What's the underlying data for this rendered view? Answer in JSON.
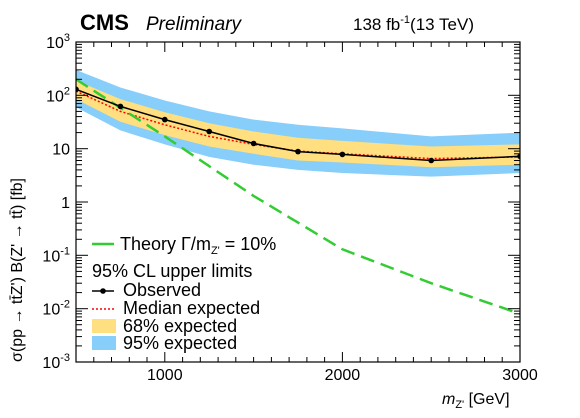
{
  "header": {
    "experiment": "CMS",
    "status": "Preliminary",
    "lumi_value": "138 fb",
    "lumi_exp": "-1",
    "lumi_energy": "(13 TeV)"
  },
  "chart_data": {
    "type": "line",
    "xlabel": "m",
    "xlabel_sub": "Z'",
    "xlabel_unit": " [GeV]",
    "ylabel": "σ(pp → tt̄Z') B(Z' → tt̄) [fb]",
    "xlim": [
      500,
      3000
    ],
    "ylim": [
      0.001,
      1000
    ],
    "yscale": "log",
    "x_ticks": [
      1000,
      2000,
      3000
    ],
    "x_tick_labels": [
      "1000",
      "2000",
      "3000"
    ],
    "y_ticks": [
      0.001,
      0.01,
      0.1,
      1,
      10,
      100,
      1000
    ],
    "y_tick_labels": [
      {
        "base": "10",
        "exp": "-3"
      },
      {
        "base": "10",
        "exp": "-2"
      },
      {
        "base": "10",
        "exp": "-1"
      },
      {
        "base": "1",
        "exp": ""
      },
      {
        "base": "10",
        "exp": ""
      },
      {
        "base": "10",
        "exp": "2"
      },
      {
        "base": "10",
        "exp": "3"
      }
    ],
    "x": [
      500,
      750,
      1000,
      1250,
      1500,
      1750,
      2000,
      2500,
      3000
    ],
    "series": [
      {
        "name": "Observed",
        "color": "#000000",
        "values": [
          130,
          62,
          35,
          21,
          12.5,
          8.8,
          7.8,
          6.0,
          7.2
        ]
      },
      {
        "name": "Median expected",
        "color": "#ff0000",
        "values": [
          120,
          50,
          28,
          17,
          12,
          9,
          8,
          6.5,
          7
        ]
      },
      {
        "name": "Theory Γ/m = 10%",
        "color": "#33cc33",
        "x": [
          500,
          1000,
          1500,
          2000,
          2500,
          3000
        ],
        "values": [
          200,
          17,
          1.3,
          0.13,
          0.03,
          0.008
        ]
      }
    ],
    "bands": [
      {
        "name": "95% expected",
        "color": "#87cefa",
        "upper": [
          300,
          140,
          80,
          50,
          35,
          28,
          24,
          17,
          20
        ],
        "lower": [
          60,
          22,
          12,
          7,
          5,
          4,
          3.5,
          3,
          3.5
        ]
      },
      {
        "name": "68% expected",
        "color": "#ffdf7f",
        "upper": [
          190,
          85,
          48,
          30,
          21,
          16,
          14,
          11,
          12
        ],
        "lower": [
          85,
          32,
          18,
          11,
          8,
          6,
          5.5,
          4.5,
          5
        ]
      }
    ],
    "legend": {
      "position": "bottom-left",
      "theory_label": "Theory Γ/m",
      "theory_sub": "Z'",
      "theory_suffix": " = 10%",
      "header": "95% CL upper limits",
      "observed": "Observed",
      "median": "Median expected",
      "band68": "68% expected",
      "band95": "95% expected"
    }
  }
}
